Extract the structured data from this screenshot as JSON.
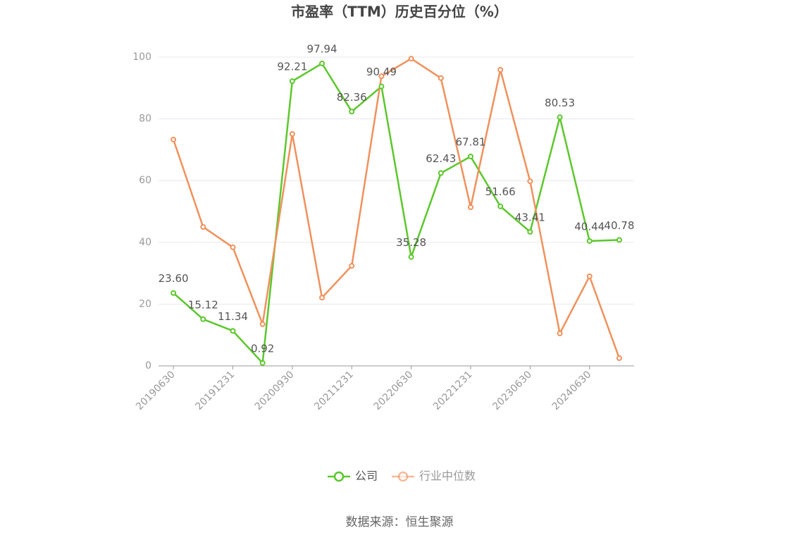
{
  "chart_data": {
    "type": "line",
    "title": "市盈率（TTM）历史百分位（%）",
    "categories": [
      "20190630",
      null,
      "20191231",
      null,
      "20200930",
      null,
      "20211231",
      null,
      "20220630",
      null,
      "20221231",
      null,
      "20230630",
      null,
      "20240630",
      null
    ],
    "series": [
      {
        "name": "公司",
        "color": "#5cc72c",
        "values": [
          23.6,
          15.12,
          11.34,
          0.92,
          92.21,
          97.94,
          82.36,
          90.49,
          35.28,
          62.43,
          67.81,
          51.66,
          43.41,
          80.53,
          40.44,
          40.78
        ],
        "value_labels": [
          "23.60",
          "15.12",
          "11.34",
          "0.92",
          "92.21",
          "97.94",
          "82.36",
          "90.49",
          "35.28",
          "62.43",
          "67.81",
          "51.66",
          "43.41",
          "80.53",
          "40.44",
          "40.78"
        ]
      },
      {
        "name": "行业中位数",
        "color": "#f0915c",
        "values": [
          73.3,
          45.0,
          38.4,
          13.5,
          75.1,
          22.1,
          32.4,
          93.8,
          99.5,
          93.2,
          51.4,
          95.9,
          59.8,
          10.5,
          29.0,
          2.5
        ]
      }
    ],
    "ylim": [
      0,
      100
    ],
    "yticks": [
      0,
      20,
      40,
      60,
      80,
      100
    ],
    "grid": true,
    "legend": "bottom",
    "source": "数据来源：恒生聚源"
  }
}
